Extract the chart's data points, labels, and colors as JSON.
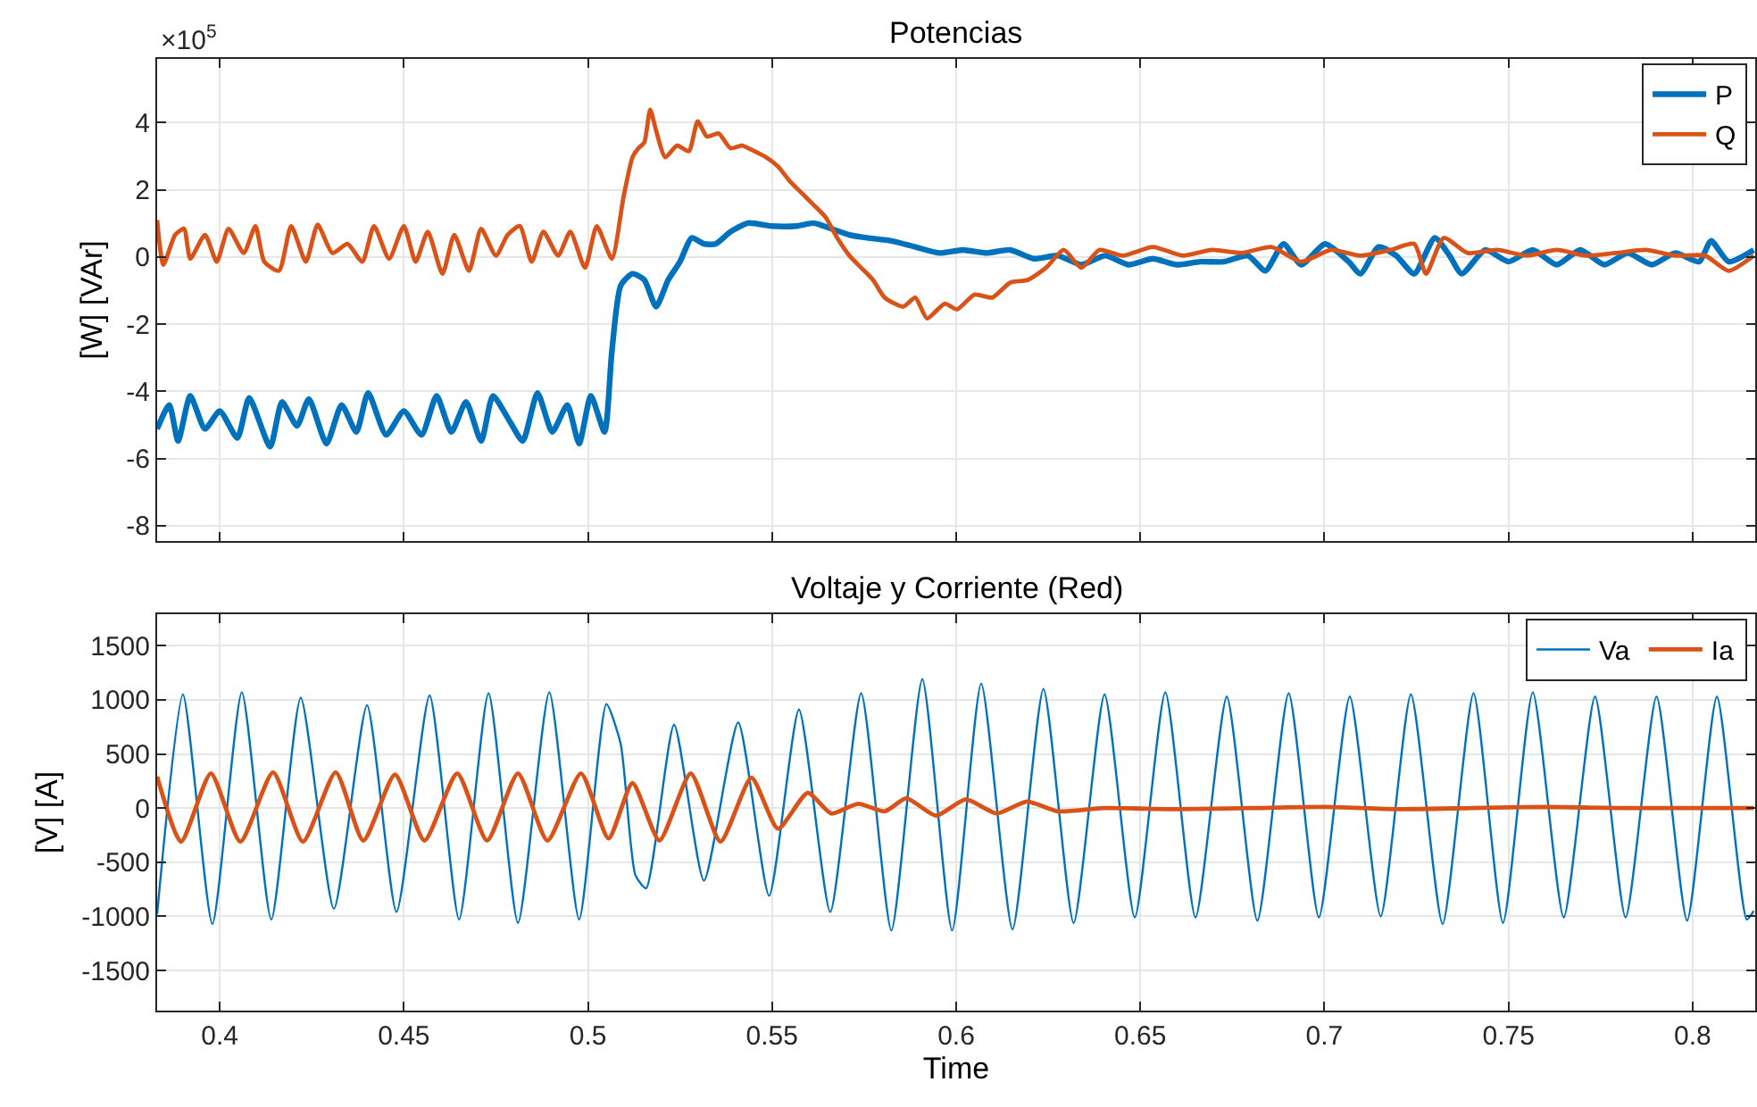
{
  "chart_data": [
    {
      "type": "line",
      "title": "Potencias",
      "ylabel": "[W] [VAr]",
      "annotations": [
        "×10$^{5}$"
      ],
      "xlim": [
        0.383,
        0.817
      ],
      "xticks": [
        0.4,
        0.45,
        0.5,
        0.55,
        0.6,
        0.65,
        0.7,
        0.75,
        0.8
      ],
      "ylim": [
        -8.46,
        5.9
      ],
      "yticks": [
        -8,
        -6,
        -4,
        -2,
        0,
        2,
        4
      ],
      "tick_labels": "y",
      "grid": true,
      "legend": "top right",
      "line_style": "solid",
      "series": [
        {
          "name": "P",
          "color": "#0072bd",
          "x": [
            0.383,
            0.3863,
            0.3887,
            0.392,
            0.396,
            0.4,
            0.4048,
            0.408,
            0.4137,
            0.4169,
            0.421,
            0.4242,
            0.429,
            0.4331,
            0.4371,
            0.4403,
            0.4452,
            0.45,
            0.4548,
            0.4589,
            0.4629,
            0.4669,
            0.471,
            0.4742,
            0.479,
            0.4823,
            0.4863,
            0.4903,
            0.4944,
            0.4976,
            0.5008,
            0.5045,
            0.5065,
            0.5089,
            0.5121,
            0.5153,
            0.5185,
            0.5218,
            0.525,
            0.5282,
            0.5315,
            0.5347,
            0.5387,
            0.5435,
            0.55,
            0.5565,
            0.5613,
            0.5661,
            0.571,
            0.5758,
            0.5824,
            0.5889,
            0.5953,
            0.6018,
            0.6082,
            0.6147,
            0.6211,
            0.6276,
            0.634,
            0.6405,
            0.6469,
            0.6534,
            0.6598,
            0.6663,
            0.6727,
            0.6792,
            0.684,
            0.6889,
            0.6937,
            0.7002,
            0.7066,
            0.7098,
            0.7147,
            0.7195,
            0.7244,
            0.73,
            0.734,
            0.7373,
            0.7437,
            0.75,
            0.7566,
            0.7631,
            0.7695,
            0.776,
            0.7824,
            0.7889,
            0.7953,
            0.8018,
            0.805,
            0.8098,
            0.8166
          ],
          "values": [
            -5.12,
            -4.41,
            -5.48,
            -4.14,
            -5.12,
            -4.59,
            -5.39,
            -4.2,
            -5.65,
            -4.32,
            -5.03,
            -4.23,
            -5.56,
            -4.41,
            -5.21,
            -4.05,
            -5.3,
            -4.59,
            -5.3,
            -4.14,
            -5.21,
            -4.32,
            -5.48,
            -4.14,
            -4.94,
            -5.48,
            -4.05,
            -5.21,
            -4.41,
            -5.56,
            -4.14,
            -5.21,
            -2.81,
            -0.85,
            -0.5,
            -0.68,
            -1.48,
            -0.68,
            -0.14,
            0.57,
            0.39,
            0.39,
            0.75,
            1.01,
            0.92,
            0.92,
            1.01,
            0.84,
            0.66,
            0.57,
            0.48,
            0.3,
            0.12,
            0.21,
            0.12,
            0.21,
            -0.05,
            0.04,
            -0.23,
            0.04,
            -0.23,
            -0.05,
            -0.23,
            -0.14,
            -0.14,
            0.04,
            -0.41,
            0.39,
            -0.23,
            0.39,
            -0.14,
            -0.5,
            0.3,
            0.04,
            -0.5,
            0.57,
            0.04,
            -0.5,
            0.21,
            -0.14,
            0.21,
            -0.23,
            0.21,
            -0.23,
            0.12,
            -0.23,
            0.12,
            -0.14,
            0.48,
            -0.14,
            0.21
          ]
        },
        {
          "name": "Q",
          "color": "#d95319",
          "x": [
            0.383,
            0.3847,
            0.3879,
            0.3903,
            0.392,
            0.396,
            0.3992,
            0.4024,
            0.4065,
            0.4097,
            0.4121,
            0.4161,
            0.4194,
            0.4234,
            0.4266,
            0.4306,
            0.4347,
            0.4387,
            0.4419,
            0.446,
            0.45,
            0.4532,
            0.4565,
            0.4605,
            0.4637,
            0.4677,
            0.471,
            0.475,
            0.4782,
            0.4815,
            0.4847,
            0.4879,
            0.4919,
            0.4952,
            0.4992,
            0.5024,
            0.5065,
            0.5097,
            0.5121,
            0.5137,
            0.5153,
            0.5169,
            0.5185,
            0.521,
            0.5242,
            0.5274,
            0.5298,
            0.5323,
            0.5355,
            0.5387,
            0.5419,
            0.5452,
            0.5484,
            0.5516,
            0.5548,
            0.5581,
            0.5613,
            0.5645,
            0.5677,
            0.571,
            0.5742,
            0.5774,
            0.5806,
            0.5856,
            0.5889,
            0.5921,
            0.5969,
            0.6002,
            0.605,
            0.6098,
            0.6147,
            0.6195,
            0.6244,
            0.6292,
            0.634,
            0.6389,
            0.6453,
            0.6534,
            0.6615,
            0.6695,
            0.6776,
            0.6856,
            0.6937,
            0.7018,
            0.7098,
            0.7179,
            0.7244,
            0.7276,
            0.7324,
            0.7389,
            0.7469,
            0.755,
            0.7631,
            0.7711,
            0.7792,
            0.7873,
            0.7953,
            0.8034,
            0.8098,
            0.8166
          ],
          "values": [
            1.1,
            -0.23,
            0.66,
            0.84,
            -0.05,
            0.66,
            -0.14,
            0.84,
            0.12,
            0.92,
            -0.14,
            -0.41,
            0.92,
            -0.14,
            0.96,
            0.12,
            0.39,
            -0.14,
            0.92,
            -0.05,
            0.92,
            -0.14,
            0.75,
            -0.5,
            0.66,
            -0.41,
            0.84,
            0.04,
            0.66,
            0.92,
            -0.14,
            0.75,
            0.04,
            0.75,
            -0.32,
            0.92,
            -0.05,
            1.81,
            2.97,
            3.24,
            3.41,
            4.39,
            3.77,
            2.97,
            3.32,
            3.15,
            4.04,
            3.59,
            3.68,
            3.24,
            3.32,
            3.15,
            2.97,
            2.7,
            2.26,
            1.9,
            1.55,
            1.19,
            0.57,
            0.04,
            -0.32,
            -0.68,
            -1.21,
            -1.48,
            -1.21,
            -1.83,
            -1.39,
            -1.56,
            -1.12,
            -1.21,
            -0.76,
            -0.68,
            -0.32,
            0.21,
            -0.32,
            0.21,
            0.04,
            0.3,
            0.04,
            0.21,
            0.12,
            0.3,
            -0.14,
            0.21,
            0.04,
            0.21,
            0.39,
            -0.5,
            0.57,
            0.12,
            0.21,
            0.04,
            0.21,
            0.04,
            0.12,
            0.21,
            0.04,
            0.04,
            -0.41,
            0.04
          ]
        }
      ]
    },
    {
      "type": "line",
      "title": "Voltaje y Corriente (Red)",
      "xlabel": "Time",
      "ylabel": "[V] [A]",
      "xlim": [
        0.383,
        0.817
      ],
      "xticks": [
        0.4,
        0.45,
        0.5,
        0.55,
        0.6,
        0.65,
        0.7,
        0.75,
        0.8
      ],
      "ylim": [
        -1870,
        1790
      ],
      "yticks": [
        -1500,
        -1000,
        -500,
        0,
        500,
        1000,
        1500
      ],
      "grid": true,
      "legend": "top right",
      "line_style": "solid",
      "series": [
        {
          "name": "Va",
          "color": "#0072bd",
          "x": [
            0.383,
            0.39,
            0.398,
            0.406,
            0.414,
            0.422,
            0.431,
            0.44,
            0.448,
            0.457,
            0.465,
            0.473,
            0.481,
            0.4895,
            0.4976,
            0.505,
            0.5089,
            0.5129,
            0.5158,
            0.5234,
            0.5315,
            0.5408,
            0.5492,
            0.5573,
            0.5658,
            0.5742,
            0.5824,
            0.5908,
            0.5989,
            0.6068,
            0.6153,
            0.6237,
            0.6319,
            0.6403,
            0.6485,
            0.6568,
            0.665,
            0.6735,
            0.6818,
            0.6903,
            0.6985,
            0.7069,
            0.7153,
            0.7235,
            0.7321,
            0.7405,
            0.7485,
            0.7566,
            0.765,
            0.7735,
            0.7818,
            0.7902,
            0.7985,
            0.8066,
            0.8147,
            0.8166
          ],
          "values": [
            -980,
            1050,
            -1070,
            1070,
            -1030,
            1020,
            -930,
            950,
            -960,
            1040,
            -1030,
            1060,
            -1060,
            1070,
            -1030,
            960,
            590,
            -620,
            -740,
            770,
            -670,
            790,
            -810,
            910,
            -960,
            1060,
            -1130,
            1190,
            -1130,
            1150,
            -1120,
            1100,
            -1060,
            1050,
            -1010,
            1070,
            -1010,
            1030,
            -1040,
            1060,
            -1010,
            1030,
            -1000,
            1050,
            -1070,
            1060,
            -1060,
            1070,
            -1010,
            1030,
            -1010,
            1030,
            -1040,
            1030,
            -1030,
            -950
          ]
        },
        {
          "name": "Ia",
          "color": "#d95319",
          "x": [
            0.383,
            0.3895,
            0.3976,
            0.4056,
            0.4145,
            0.4226,
            0.4315,
            0.439,
            0.4476,
            0.4556,
            0.4645,
            0.4726,
            0.481,
            0.489,
            0.4981,
            0.5056,
            0.5121,
            0.5194,
            0.5279,
            0.536,
            0.5444,
            0.5516,
            0.5597,
            0.5661,
            0.5734,
            0.5806,
            0.5865,
            0.5945,
            0.6026,
            0.611,
            0.6192,
            0.6276,
            0.64,
            0.66,
            0.68,
            0.7,
            0.72,
            0.74,
            0.76,
            0.78,
            0.8,
            0.8166
          ],
          "values": [
            290,
            -310,
            320,
            -310,
            330,
            -310,
            330,
            -300,
            310,
            -300,
            320,
            -300,
            320,
            -300,
            320,
            -280,
            230,
            -300,
            320,
            -310,
            280,
            -190,
            140,
            -50,
            40,
            -30,
            90,
            -70,
            80,
            -50,
            60,
            -30,
            0,
            -10,
            0,
            10,
            -10,
            0,
            10,
            0,
            0,
            0
          ]
        }
      ]
    }
  ]
}
